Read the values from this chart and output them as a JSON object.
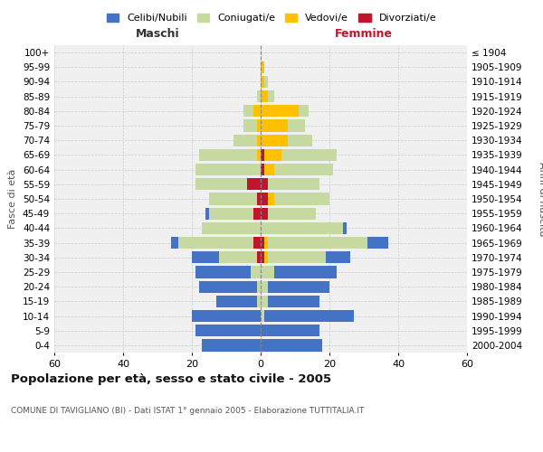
{
  "age_groups": [
    "0-4",
    "5-9",
    "10-14",
    "15-19",
    "20-24",
    "25-29",
    "30-34",
    "35-39",
    "40-44",
    "45-49",
    "50-54",
    "55-59",
    "60-64",
    "65-69",
    "70-74",
    "75-79",
    "80-84",
    "85-89",
    "90-94",
    "95-99",
    "100+"
  ],
  "birth_years": [
    "2000-2004",
    "1995-1999",
    "1990-1994",
    "1985-1989",
    "1980-1984",
    "1975-1979",
    "1970-1974",
    "1965-1969",
    "1960-1964",
    "1955-1959",
    "1950-1954",
    "1945-1949",
    "1940-1944",
    "1935-1939",
    "1930-1934",
    "1925-1929",
    "1920-1924",
    "1915-1919",
    "1910-1914",
    "1905-1909",
    "≤ 1904"
  ],
  "maschi": {
    "celibi": [
      17,
      19,
      20,
      12,
      17,
      16,
      8,
      2,
      0,
      1,
      0,
      0,
      0,
      0,
      0,
      0,
      0,
      0,
      0,
      0,
      0
    ],
    "coniugati": [
      0,
      0,
      0,
      1,
      1,
      3,
      11,
      22,
      17,
      13,
      14,
      15,
      19,
      17,
      7,
      4,
      3,
      1,
      0,
      0,
      0
    ],
    "vedovi": [
      0,
      0,
      0,
      0,
      0,
      0,
      0,
      0,
      0,
      0,
      0,
      0,
      0,
      1,
      1,
      1,
      2,
      0,
      0,
      0,
      0
    ],
    "divorziati": [
      0,
      0,
      0,
      0,
      0,
      0,
      1,
      2,
      0,
      2,
      1,
      4,
      0,
      0,
      0,
      0,
      0,
      0,
      0,
      0,
      0
    ]
  },
  "femmine": {
    "nubili": [
      18,
      17,
      26,
      15,
      18,
      18,
      7,
      6,
      1,
      0,
      0,
      0,
      0,
      0,
      0,
      0,
      0,
      0,
      0,
      0,
      0
    ],
    "coniugate": [
      0,
      0,
      1,
      2,
      2,
      4,
      17,
      29,
      24,
      14,
      16,
      15,
      17,
      16,
      7,
      5,
      3,
      2,
      1,
      0,
      0
    ],
    "vedove": [
      0,
      0,
      0,
      0,
      0,
      0,
      1,
      1,
      0,
      0,
      2,
      0,
      3,
      5,
      8,
      8,
      11,
      2,
      1,
      1,
      0
    ],
    "divorziate": [
      0,
      0,
      0,
      0,
      0,
      0,
      1,
      1,
      0,
      2,
      2,
      2,
      1,
      1,
      0,
      0,
      0,
      0,
      0,
      0,
      0
    ]
  },
  "colors": {
    "celibi": "#4472c4",
    "coniugati": "#c5d9a0",
    "vedovi": "#ffc000",
    "divorziati": "#c0152c"
  },
  "title": "Popolazione per età, sesso e stato civile - 2005",
  "subtitle": "COMUNE DI TAVIGLIANO (BI) - Dati ISTAT 1° gennaio 2005 - Elaborazione TUTTITALIA.IT",
  "xlabel_left": "Maschi",
  "xlabel_right": "Femmine",
  "ylabel_left": "Fasce di età",
  "ylabel_right": "Anni di nascita",
  "xlim": 60,
  "legend_labels": [
    "Celibi/Nubili",
    "Coniugati/e",
    "Vedovi/e",
    "Divorziati/e"
  ],
  "bg_color": "#ffffff",
  "grid_color": "#cccccc"
}
